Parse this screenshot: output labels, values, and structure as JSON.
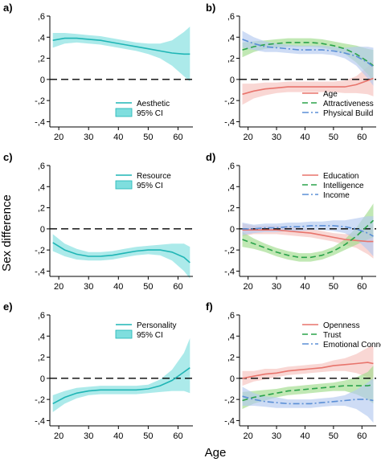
{
  "figure": {
    "ylabel": "Sex difference",
    "xlabel": "Age"
  },
  "colors": {
    "teal": "#1fb5b5",
    "teal_fill": "#7fdede",
    "red": "#e8746c",
    "red_fill": "#f6c1bd",
    "green": "#2aa34a",
    "green_fill": "#9fdc8c",
    "blue": "#5b8fd6",
    "blue_fill": "#b3c9f0",
    "zero_line": "#000000"
  },
  "chart_data": [
    {
      "panel_label": "a)",
      "type": "line",
      "x": [
        18,
        22,
        26,
        30,
        34,
        38,
        42,
        46,
        50,
        54,
        58,
        62,
        64
      ],
      "xlim": [
        17,
        65
      ],
      "ylim": [
        -0.45,
        0.6
      ],
      "xticks": [
        20,
        30,
        40,
        50,
        60
      ],
      "yticks": [
        -0.4,
        -0.2,
        0,
        0.2,
        0.4,
        0.6
      ],
      "ytick_labels": [
        "-,4",
        "-,2",
        "0",
        ",2",
        ",4",
        ",6"
      ],
      "legend_position": "bottom-right",
      "series": [
        {
          "name": "Aesthetic",
          "style": "solid",
          "color": "teal",
          "values": [
            0.37,
            0.39,
            0.39,
            0.38,
            0.37,
            0.35,
            0.33,
            0.31,
            0.29,
            0.27,
            0.25,
            0.24,
            0.24
          ],
          "lower": [
            0.3,
            0.34,
            0.35,
            0.34,
            0.33,
            0.31,
            0.29,
            0.27,
            0.24,
            0.2,
            0.13,
            0.03,
            -0.02
          ],
          "upper": [
            0.44,
            0.44,
            0.43,
            0.42,
            0.41,
            0.39,
            0.37,
            0.35,
            0.34,
            0.34,
            0.37,
            0.45,
            0.5
          ]
        }
      ],
      "ci_label": "95% CI"
    },
    {
      "panel_label": "b)",
      "type": "line",
      "x": [
        18,
        22,
        26,
        30,
        34,
        38,
        42,
        46,
        50,
        54,
        58,
        62,
        64
      ],
      "xlim": [
        17,
        65
      ],
      "ylim": [
        -0.45,
        0.6
      ],
      "xticks": [
        20,
        30,
        40,
        50,
        60
      ],
      "yticks": [
        -0.4,
        -0.2,
        0,
        0.2,
        0.4,
        0.6
      ],
      "ytick_labels": [
        "-,4",
        "-,2",
        "0",
        ",2",
        ",4",
        ",6"
      ],
      "legend_position": "bottom-right",
      "series": [
        {
          "name": "Age",
          "style": "solid",
          "color": "red",
          "values": [
            -0.14,
            -0.11,
            -0.09,
            -0.08,
            -0.07,
            -0.07,
            -0.07,
            -0.07,
            -0.07,
            -0.07,
            -0.05,
            -0.01,
            0.01
          ],
          "lower": [
            -0.24,
            -0.18,
            -0.15,
            -0.13,
            -0.12,
            -0.12,
            -0.12,
            -0.12,
            -0.12,
            -0.13,
            -0.13,
            -0.14,
            -0.16
          ],
          "upper": [
            -0.04,
            -0.04,
            -0.03,
            -0.03,
            -0.02,
            -0.02,
            -0.02,
            -0.02,
            -0.02,
            -0.01,
            0.03,
            0.12,
            0.18
          ]
        },
        {
          "name": "Attractiveness",
          "style": "dashed",
          "color": "green",
          "values": [
            0.28,
            0.31,
            0.33,
            0.34,
            0.35,
            0.35,
            0.35,
            0.34,
            0.32,
            0.29,
            0.24,
            0.17,
            0.13
          ],
          "lower": [
            0.21,
            0.26,
            0.29,
            0.3,
            0.31,
            0.31,
            0.31,
            0.3,
            0.28,
            0.24,
            0.16,
            0.05,
            -0.02
          ],
          "upper": [
            0.35,
            0.36,
            0.37,
            0.38,
            0.39,
            0.39,
            0.39,
            0.38,
            0.36,
            0.34,
            0.32,
            0.29,
            0.28
          ]
        },
        {
          "name": "Physical Build",
          "style": "dashdot",
          "color": "blue",
          "values": [
            0.38,
            0.34,
            0.31,
            0.3,
            0.29,
            0.28,
            0.28,
            0.28,
            0.27,
            0.25,
            0.22,
            0.16,
            0.12
          ],
          "lower": [
            0.3,
            0.28,
            0.26,
            0.26,
            0.25,
            0.24,
            0.24,
            0.24,
            0.23,
            0.2,
            0.13,
            0.01,
            -0.06
          ],
          "upper": [
            0.46,
            0.4,
            0.36,
            0.34,
            0.33,
            0.32,
            0.32,
            0.32,
            0.31,
            0.3,
            0.31,
            0.31,
            0.3
          ]
        }
      ]
    },
    {
      "panel_label": "c)",
      "type": "line",
      "x": [
        18,
        22,
        26,
        30,
        34,
        38,
        42,
        46,
        50,
        54,
        58,
        62,
        64
      ],
      "xlim": [
        17,
        65
      ],
      "ylim": [
        -0.45,
        0.6
      ],
      "xticks": [
        20,
        30,
        40,
        50,
        60
      ],
      "yticks": [
        -0.4,
        -0.2,
        0,
        0.2,
        0.4,
        0.6
      ],
      "ytick_labels": [
        "-,4",
        "-,2",
        "0",
        ",2",
        ",4",
        ",6"
      ],
      "legend_position": "top-right",
      "series": [
        {
          "name": "Resource",
          "style": "solid",
          "color": "teal",
          "values": [
            -0.13,
            -0.2,
            -0.24,
            -0.26,
            -0.26,
            -0.25,
            -0.23,
            -0.21,
            -0.2,
            -0.2,
            -0.22,
            -0.27,
            -0.32
          ],
          "lower": [
            -0.21,
            -0.26,
            -0.29,
            -0.3,
            -0.3,
            -0.29,
            -0.27,
            -0.25,
            -0.24,
            -0.25,
            -0.3,
            -0.4,
            -0.47
          ],
          "upper": [
            -0.05,
            -0.14,
            -0.19,
            -0.22,
            -0.22,
            -0.21,
            -0.19,
            -0.17,
            -0.16,
            -0.15,
            -0.14,
            -0.14,
            -0.17
          ]
        }
      ],
      "ci_label": "95% CI"
    },
    {
      "panel_label": "d)",
      "type": "line",
      "x": [
        18,
        22,
        26,
        30,
        34,
        38,
        42,
        46,
        50,
        54,
        58,
        62,
        64
      ],
      "xlim": [
        17,
        65
      ],
      "ylim": [
        -0.45,
        0.6
      ],
      "xticks": [
        20,
        30,
        40,
        50,
        60
      ],
      "yticks": [
        -0.4,
        -0.2,
        0,
        0.2,
        0.4,
        0.6
      ],
      "ytick_labels": [
        "-,4",
        "-,2",
        "0",
        ",2",
        ",4",
        ",6"
      ],
      "legend_position": "top-right",
      "series": [
        {
          "name": "Education",
          "style": "solid",
          "color": "red",
          "values": [
            -0.01,
            -0.01,
            -0.01,
            -0.01,
            -0.02,
            -0.03,
            -0.04,
            -0.06,
            -0.08,
            -0.1,
            -0.11,
            -0.12,
            -0.12
          ],
          "lower": [
            -0.07,
            -0.05,
            -0.05,
            -0.05,
            -0.06,
            -0.07,
            -0.08,
            -0.1,
            -0.12,
            -0.15,
            -0.18,
            -0.24,
            -0.28
          ],
          "upper": [
            0.05,
            0.03,
            0.03,
            0.03,
            0.02,
            0.01,
            0.0,
            -0.02,
            -0.04,
            -0.05,
            -0.04,
            0.0,
            0.04
          ]
        },
        {
          "name": "Intelligence",
          "style": "dashed",
          "color": "green",
          "values": [
            -0.1,
            -0.14,
            -0.18,
            -0.22,
            -0.25,
            -0.27,
            -0.27,
            -0.25,
            -0.21,
            -0.15,
            -0.07,
            0.03,
            0.08
          ],
          "lower": [
            -0.17,
            -0.19,
            -0.22,
            -0.26,
            -0.29,
            -0.31,
            -0.31,
            -0.29,
            -0.25,
            -0.2,
            -0.15,
            -0.1,
            -0.08
          ],
          "upper": [
            -0.03,
            -0.09,
            -0.14,
            -0.18,
            -0.21,
            -0.23,
            -0.23,
            -0.21,
            -0.17,
            -0.1,
            0.01,
            0.16,
            0.24
          ]
        },
        {
          "name": "Income",
          "style": "dashdot",
          "color": "blue",
          "values": [
            0.0,
            0.0,
            0.01,
            0.01,
            0.02,
            0.02,
            0.03,
            0.03,
            0.03,
            0.02,
            0.0,
            -0.04,
            -0.07
          ],
          "lower": [
            -0.06,
            -0.04,
            -0.03,
            -0.03,
            -0.02,
            -0.02,
            -0.01,
            -0.01,
            -0.02,
            -0.04,
            -0.1,
            -0.2,
            -0.26
          ],
          "upper": [
            0.06,
            0.04,
            0.05,
            0.05,
            0.06,
            0.06,
            0.07,
            0.07,
            0.08,
            0.08,
            0.1,
            0.12,
            0.12
          ]
        }
      ]
    },
    {
      "panel_label": "e)",
      "type": "line",
      "x": [
        18,
        22,
        26,
        30,
        34,
        38,
        42,
        46,
        50,
        54,
        58,
        62,
        64
      ],
      "xlim": [
        17,
        65
      ],
      "ylim": [
        -0.45,
        0.6
      ],
      "xticks": [
        20,
        30,
        40,
        50,
        60
      ],
      "yticks": [
        -0.4,
        -0.2,
        0,
        0.2,
        0.4,
        0.6
      ],
      "ytick_labels": [
        "-,4",
        "-,2",
        "0",
        ",2",
        ",4",
        ",6"
      ],
      "legend_position": "top-right",
      "series": [
        {
          "name": "Personality",
          "style": "solid",
          "color": "teal",
          "values": [
            -0.24,
            -0.18,
            -0.14,
            -0.12,
            -0.11,
            -0.11,
            -0.11,
            -0.11,
            -0.1,
            -0.07,
            -0.02,
            0.06,
            0.1
          ],
          "lower": [
            -0.32,
            -0.24,
            -0.19,
            -0.16,
            -0.15,
            -0.15,
            -0.15,
            -0.15,
            -0.14,
            -0.13,
            -0.12,
            -0.12,
            -0.14
          ],
          "upper": [
            -0.16,
            -0.12,
            -0.09,
            -0.08,
            -0.07,
            -0.07,
            -0.07,
            -0.07,
            -0.06,
            -0.01,
            0.08,
            0.24,
            0.38
          ]
        }
      ],
      "ci_label": "95% CI"
    },
    {
      "panel_label": "f)",
      "type": "line",
      "x": [
        18,
        22,
        26,
        30,
        34,
        38,
        42,
        46,
        50,
        54,
        58,
        62,
        64
      ],
      "xlim": [
        17,
        65
      ],
      "ylim": [
        -0.45,
        0.6
      ],
      "xticks": [
        20,
        30,
        40,
        50,
        60
      ],
      "yticks": [
        -0.4,
        -0.2,
        0,
        0.2,
        0.4,
        0.6
      ],
      "ytick_labels": [
        "-,4",
        "-,2",
        "0",
        ",2",
        ",4",
        ",6"
      ],
      "legend_position": "top-right",
      "series": [
        {
          "name": "Openness",
          "style": "solid",
          "color": "red",
          "values": [
            0.0,
            0.02,
            0.04,
            0.05,
            0.07,
            0.08,
            0.09,
            0.1,
            0.12,
            0.13,
            0.14,
            0.15,
            0.14
          ],
          "lower": [
            -0.07,
            -0.03,
            -0.01,
            0.01,
            0.03,
            0.04,
            0.05,
            0.06,
            0.07,
            0.07,
            0.05,
            0.01,
            -0.03
          ],
          "upper": [
            0.07,
            0.07,
            0.09,
            0.09,
            0.11,
            0.12,
            0.13,
            0.14,
            0.17,
            0.19,
            0.23,
            0.29,
            0.31
          ]
        },
        {
          "name": "Trust",
          "style": "dashed",
          "color": "green",
          "values": [
            -0.21,
            -0.18,
            -0.16,
            -0.14,
            -0.12,
            -0.11,
            -0.1,
            -0.09,
            -0.08,
            -0.07,
            -0.07,
            -0.07,
            -0.06
          ],
          "lower": [
            -0.29,
            -0.24,
            -0.21,
            -0.18,
            -0.16,
            -0.15,
            -0.14,
            -0.13,
            -0.12,
            -0.12,
            -0.15,
            -0.2,
            -0.24
          ],
          "upper": [
            -0.13,
            -0.12,
            -0.11,
            -0.1,
            -0.08,
            -0.07,
            -0.06,
            -0.05,
            -0.04,
            -0.02,
            0.01,
            0.06,
            0.12
          ]
        },
        {
          "name": "Emotional Connection",
          "style": "dashdot",
          "color": "blue",
          "values": [
            -0.17,
            -0.2,
            -0.22,
            -0.23,
            -0.24,
            -0.24,
            -0.24,
            -0.23,
            -0.22,
            -0.21,
            -0.2,
            -0.2,
            -0.21
          ],
          "lower": [
            -0.26,
            -0.26,
            -0.27,
            -0.28,
            -0.28,
            -0.28,
            -0.28,
            -0.27,
            -0.26,
            -0.26,
            -0.29,
            -0.36,
            -0.42
          ],
          "upper": [
            -0.08,
            -0.14,
            -0.17,
            -0.18,
            -0.2,
            -0.2,
            -0.2,
            -0.19,
            -0.18,
            -0.16,
            -0.11,
            -0.04,
            0.0
          ]
        }
      ]
    }
  ]
}
